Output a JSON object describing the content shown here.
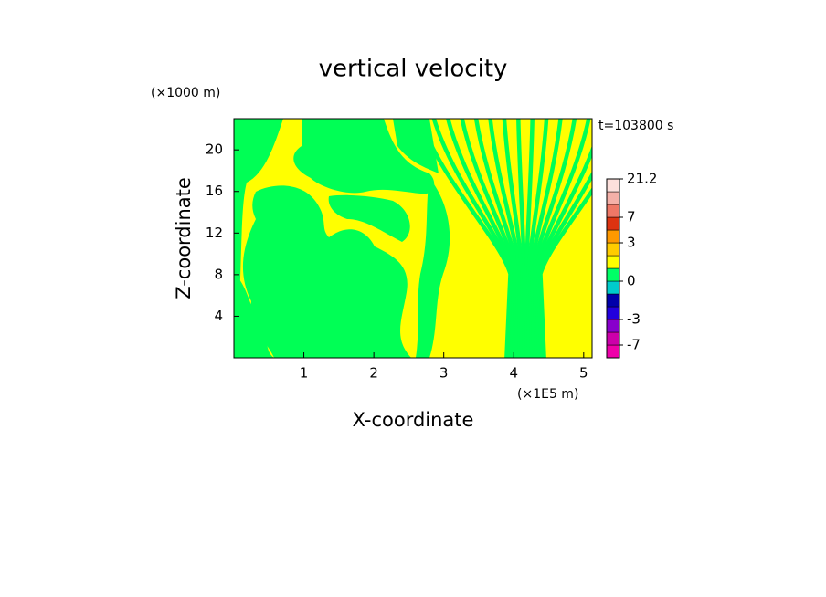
{
  "chart_data": {
    "type": "contour",
    "title": "vertical velocity",
    "x_label": "X-coordinate",
    "y_label": "Z-coordinate",
    "x_unit": "(×1E5 m)",
    "y_unit": "(×1000 m)",
    "time_label": "t=103800 s",
    "xlim": [
      0,
      5.12
    ],
    "ylim": [
      0,
      23
    ],
    "xticks": [
      1,
      2,
      3,
      4,
      5
    ],
    "yticks": [
      4,
      8,
      12,
      16,
      20
    ],
    "colorbar": {
      "levels": [
        -10,
        -7,
        -5,
        -3,
        -2,
        -1,
        0,
        1,
        2,
        3,
        5,
        7,
        10,
        14,
        21.2
      ],
      "colors": [
        "#ee00aa",
        "#cc00aa",
        "#8800cc",
        "#2200dd",
        "#0000aa",
        "#00cccc",
        "#00ff66",
        "#ffff00",
        "#ffcc00",
        "#ff9900",
        "#dd3311",
        "#ee7766",
        "#f4b0a8",
        "#fde0dc"
      ],
      "ticks": [
        21.2,
        7,
        3,
        0,
        -3,
        -7
      ]
    }
  }
}
